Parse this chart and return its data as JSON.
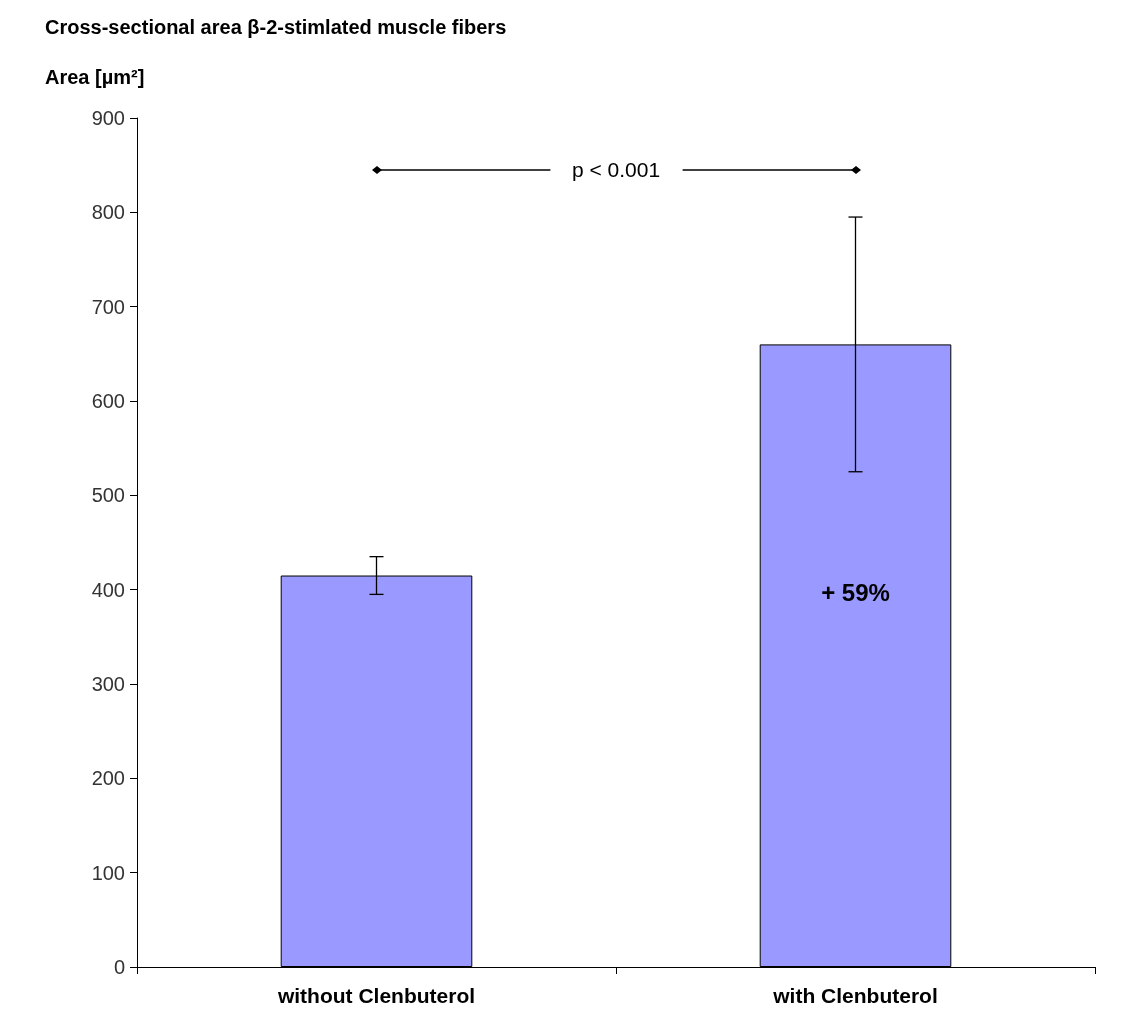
{
  "chart_data": {
    "type": "bar",
    "title": "Cross-sectional area β-2-stimlated muscle fibers",
    "ylabel": "Area [µm²]",
    "categories": [
      "without Clenbuterol",
      "with Clenbuterol"
    ],
    "values": [
      415,
      660
    ],
    "errors": [
      20,
      135
    ],
    "color": "#9999ff",
    "ylim": [
      0,
      900
    ],
    "yticks": [
      0,
      100,
      200,
      300,
      400,
      500,
      600,
      700,
      800,
      900
    ],
    "grid": false,
    "annotations": [
      "p < 0.001",
      "+ 59%"
    ]
  }
}
